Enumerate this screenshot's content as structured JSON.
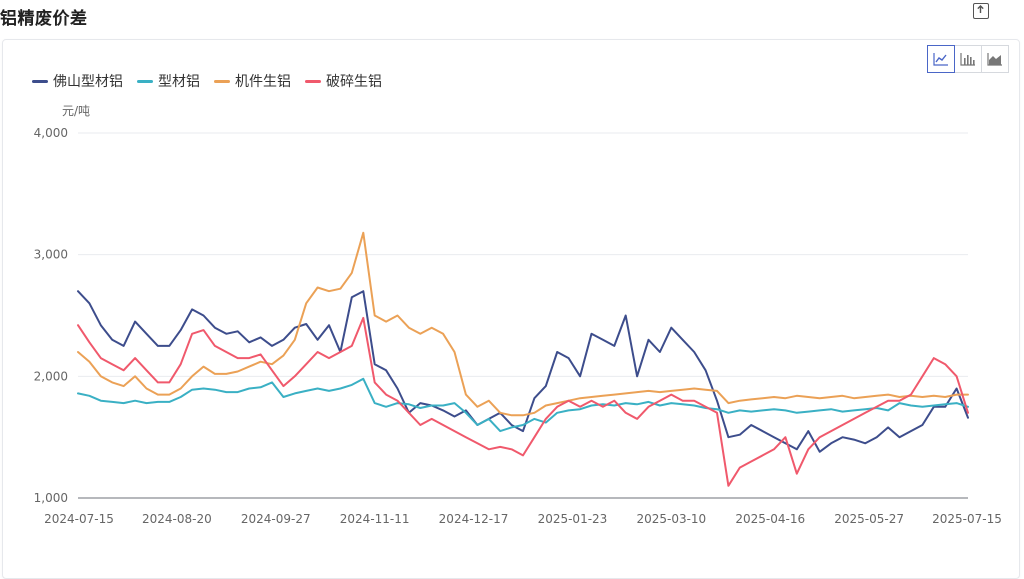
{
  "page": {
    "title": "铝精废价差",
    "export_icon": "export-icon"
  },
  "toolbar": {
    "buttons": [
      {
        "icon": "line-chart-icon",
        "active": true
      },
      {
        "icon": "bar-chart-icon",
        "active": false
      },
      {
        "icon": "area-chart-icon",
        "active": false
      }
    ]
  },
  "colors": {
    "foshan": "#3d4d8c",
    "profile": "#3ab0c4",
    "machine": "#eba156",
    "broken": "#f0596c",
    "accent": "#4a66c7"
  },
  "chart_data": {
    "type": "line",
    "ylabel": "元/吨",
    "ylim": [
      1000,
      4000
    ],
    "yticks": [
      "1,000",
      "2,000",
      "3,000",
      "4,000"
    ],
    "xticks": [
      "2024-07-15",
      "2024-08-20",
      "2024-09-27",
      "2024-11-11",
      "2024-12-17",
      "2025-01-23",
      "2025-03-10",
      "2025-04-16",
      "2025-05-27",
      "2025-07-15"
    ],
    "legend_position": "top-left",
    "grid": true,
    "series": [
      {
        "name": "佛山型材铝",
        "key": "foshan",
        "values": [
          2700,
          2600,
          2420,
          2300,
          2250,
          2450,
          2350,
          2250,
          2250,
          2380,
          2550,
          2500,
          2400,
          2350,
          2370,
          2280,
          2320,
          2250,
          2300,
          2400,
          2430,
          2300,
          2420,
          2200,
          2650,
          2700,
          2100,
          2050,
          1900,
          1700,
          1780,
          1760,
          1720,
          1670,
          1720,
          1600,
          1650,
          1700,
          1600,
          1550,
          1820,
          1920,
          2200,
          2150,
          2000,
          2350,
          2300,
          2250,
          2500,
          2000,
          2300,
          2200,
          2400,
          2300,
          2200,
          2050,
          1800,
          1500,
          1520,
          1600,
          1550,
          1500,
          1450,
          1400,
          1550,
          1380,
          1450,
          1500,
          1480,
          1450,
          1500,
          1580,
          1500,
          1550,
          1600,
          1750,
          1750,
          1900,
          1660
        ]
      },
      {
        "name": "型材铝",
        "key": "profile",
        "values": [
          1860,
          1840,
          1800,
          1790,
          1780,
          1800,
          1780,
          1790,
          1790,
          1830,
          1890,
          1900,
          1890,
          1870,
          1870,
          1900,
          1910,
          1950,
          1830,
          1860,
          1880,
          1900,
          1880,
          1900,
          1930,
          1980,
          1780,
          1750,
          1780,
          1770,
          1740,
          1760,
          1760,
          1780,
          1700,
          1600,
          1650,
          1550,
          1580,
          1600,
          1650,
          1620,
          1700,
          1720,
          1730,
          1760,
          1770,
          1760,
          1780,
          1770,
          1790,
          1760,
          1780,
          1770,
          1760,
          1740,
          1730,
          1700,
          1720,
          1710,
          1720,
          1730,
          1720,
          1700,
          1710,
          1720,
          1730,
          1710,
          1720,
          1730,
          1740,
          1720,
          1780,
          1760,
          1750,
          1760,
          1770,
          1780,
          1750
        ]
      },
      {
        "name": "机件生铝",
        "key": "machine",
        "values": [
          2200,
          2120,
          2000,
          1950,
          1920,
          2000,
          1900,
          1850,
          1850,
          1900,
          2000,
          2080,
          2020,
          2020,
          2040,
          2080,
          2120,
          2100,
          2170,
          2300,
          2600,
          2730,
          2700,
          2720,
          2850,
          3180,
          2500,
          2450,
          2500,
          2400,
          2350,
          2400,
          2350,
          2200,
          1850,
          1750,
          1800,
          1700,
          1680,
          1680,
          1700,
          1760,
          1780,
          1800,
          1820,
          1830,
          1840,
          1850,
          1860,
          1870,
          1880,
          1870,
          1880,
          1890,
          1900,
          1890,
          1880,
          1780,
          1800,
          1810,
          1820,
          1830,
          1820,
          1840,
          1830,
          1820,
          1830,
          1840,
          1820,
          1830,
          1840,
          1850,
          1830,
          1840,
          1830,
          1840,
          1830,
          1850,
          1850
        ]
      },
      {
        "name": "破碎生铝",
        "key": "broken",
        "values": [
          2420,
          2280,
          2150,
          2100,
          2050,
          2150,
          2050,
          1950,
          1950,
          2100,
          2350,
          2380,
          2250,
          2200,
          2150,
          2150,
          2180,
          2050,
          1920,
          2000,
          2100,
          2200,
          2150,
          2200,
          2250,
          2480,
          1950,
          1850,
          1800,
          1700,
          1600,
          1650,
          1600,
          1550,
          1500,
          1450,
          1400,
          1420,
          1400,
          1350,
          1500,
          1650,
          1750,
          1800,
          1750,
          1800,
          1750,
          1800,
          1700,
          1650,
          1750,
          1800,
          1850,
          1800,
          1800,
          1750,
          1700,
          1100,
          1250,
          1300,
          1350,
          1400,
          1500,
          1200,
          1400,
          1500,
          1550,
          1600,
          1650,
          1700,
          1750,
          1800,
          1800,
          1850,
          2000,
          2150,
          2100,
          2000,
          1700
        ]
      }
    ]
  }
}
